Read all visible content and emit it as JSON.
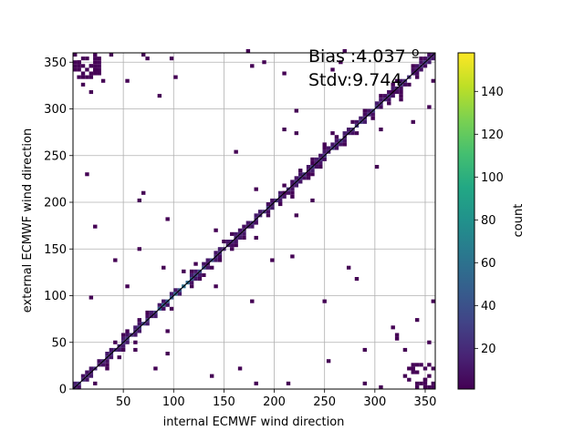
{
  "chart_data": {
    "type": "heatmap",
    "xlabel": "internal ECMWF wind direction",
    "ylabel": "external ECMWF wind direction",
    "xlim": [
      0,
      360
    ],
    "ylim": [
      0,
      360
    ],
    "xticks": [
      50,
      100,
      150,
      200,
      250,
      300,
      350
    ],
    "yticks": [
      0,
      50,
      100,
      150,
      200,
      250,
      300,
      350
    ],
    "grid": true,
    "annotation_bias": "Bias :4.037 º",
    "annotation_stdv": "Stdv:9.744",
    "reference_line": {
      "from": [
        0,
        0
      ],
      "to": [
        360,
        360
      ],
      "color": "#000000"
    },
    "bin_size": 4,
    "diagonal_band_halfwidth_deg": 12,
    "colorbar": {
      "label": "count",
      "range": [
        1,
        158
      ],
      "ticks": [
        20,
        40,
        60,
        80,
        100,
        120,
        140
      ],
      "colormap": "viridis",
      "colors": [
        "#440154",
        "#482475",
        "#414487",
        "#355f8d",
        "#2a788e",
        "#21918c",
        "#22a884",
        "#44bf70",
        "#7ad151",
        "#bddf26",
        "#fde725"
      ]
    },
    "outliers": [
      [
        1,
        356
      ],
      [
        5,
        350
      ],
      [
        9,
        345
      ],
      [
        13,
        354
      ],
      [
        17,
        347
      ],
      [
        21,
        351
      ],
      [
        3,
        340
      ],
      [
        14,
        335
      ],
      [
        22,
        342
      ],
      [
        10,
        325
      ],
      [
        18,
        316
      ],
      [
        38,
        357
      ],
      [
        70,
        358
      ],
      [
        72,
        352
      ],
      [
        55,
        328
      ],
      [
        96,
        352
      ],
      [
        101,
        333
      ],
      [
        172,
        360
      ],
      [
        178,
        345
      ],
      [
        190,
        350
      ],
      [
        208,
        336
      ],
      [
        266,
        348
      ],
      [
        268,
        360
      ],
      [
        259,
        341
      ],
      [
        12,
        230
      ],
      [
        20,
        175
      ],
      [
        40,
        138
      ],
      [
        53,
        110
      ],
      [
        18,
        96
      ],
      [
        64,
        203
      ],
      [
        66,
        150
      ],
      [
        70,
        210
      ],
      [
        94,
        180
      ],
      [
        120,
        132
      ],
      [
        140,
        170
      ],
      [
        160,
        253
      ],
      [
        180,
        162
      ],
      [
        198,
        138
      ],
      [
        204,
        198
      ],
      [
        208,
        278
      ],
      [
        210,
        210
      ],
      [
        218,
        143
      ],
      [
        221,
        298
      ],
      [
        223,
        273
      ],
      [
        232,
        228
      ],
      [
        238,
        243
      ],
      [
        250,
        262
      ],
      [
        256,
        275
      ],
      [
        250,
        95
      ],
      [
        252,
        30
      ],
      [
        272,
        130
      ],
      [
        280,
        118
      ],
      [
        290,
        40
      ],
      [
        318,
        66
      ],
      [
        322,
        58
      ],
      [
        321,
        52
      ],
      [
        331,
        43
      ],
      [
        333,
        20
      ],
      [
        340,
        18
      ],
      [
        345,
        5
      ],
      [
        349,
        10
      ],
      [
        351,
        2
      ],
      [
        354,
        12
      ],
      [
        357,
        23
      ],
      [
        355,
        50
      ],
      [
        357,
        95
      ],
      [
        343,
        72
      ],
      [
        330,
        12
      ],
      [
        306,
        0
      ],
      [
        290,
        6
      ],
      [
        180,
        4
      ],
      [
        215,
        5
      ],
      [
        166,
        20
      ],
      [
        136,
        13
      ],
      [
        95,
        37
      ],
      [
        80,
        22
      ],
      [
        20,
        5
      ],
      [
        110,
        126
      ],
      [
        93,
        60
      ],
      [
        140,
        108
      ],
      [
        176,
        93
      ],
      [
        183,
        213
      ],
      [
        222,
        185
      ],
      [
        236,
        200
      ],
      [
        300,
        237
      ],
      [
        306,
        279
      ],
      [
        316,
        318
      ],
      [
        325,
        310
      ],
      [
        336,
        285
      ],
      [
        352,
        300
      ],
      [
        358,
        330
      ],
      [
        28,
        330
      ],
      [
        84,
        314
      ],
      [
        42,
        48
      ],
      [
        60,
        40
      ],
      [
        90,
        130
      ]
    ]
  }
}
